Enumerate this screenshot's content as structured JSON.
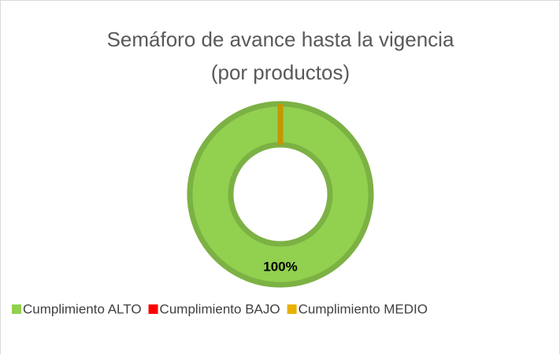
{
  "chart_data": {
    "type": "donut",
    "title": [
      "Semáforo de avance hasta la vigencia",
      "(por productos)"
    ],
    "categories": [
      "Cumplimiento ALTO",
      "Cumplimiento BAJO",
      "Cumplimiento MEDIO"
    ],
    "values": [
      100,
      0,
      0
    ],
    "value_labels": [
      "100%",
      null,
      null
    ],
    "colors": [
      "#92d050",
      "#ff0000",
      "#e8b100"
    ],
    "legend": "bottom"
  }
}
